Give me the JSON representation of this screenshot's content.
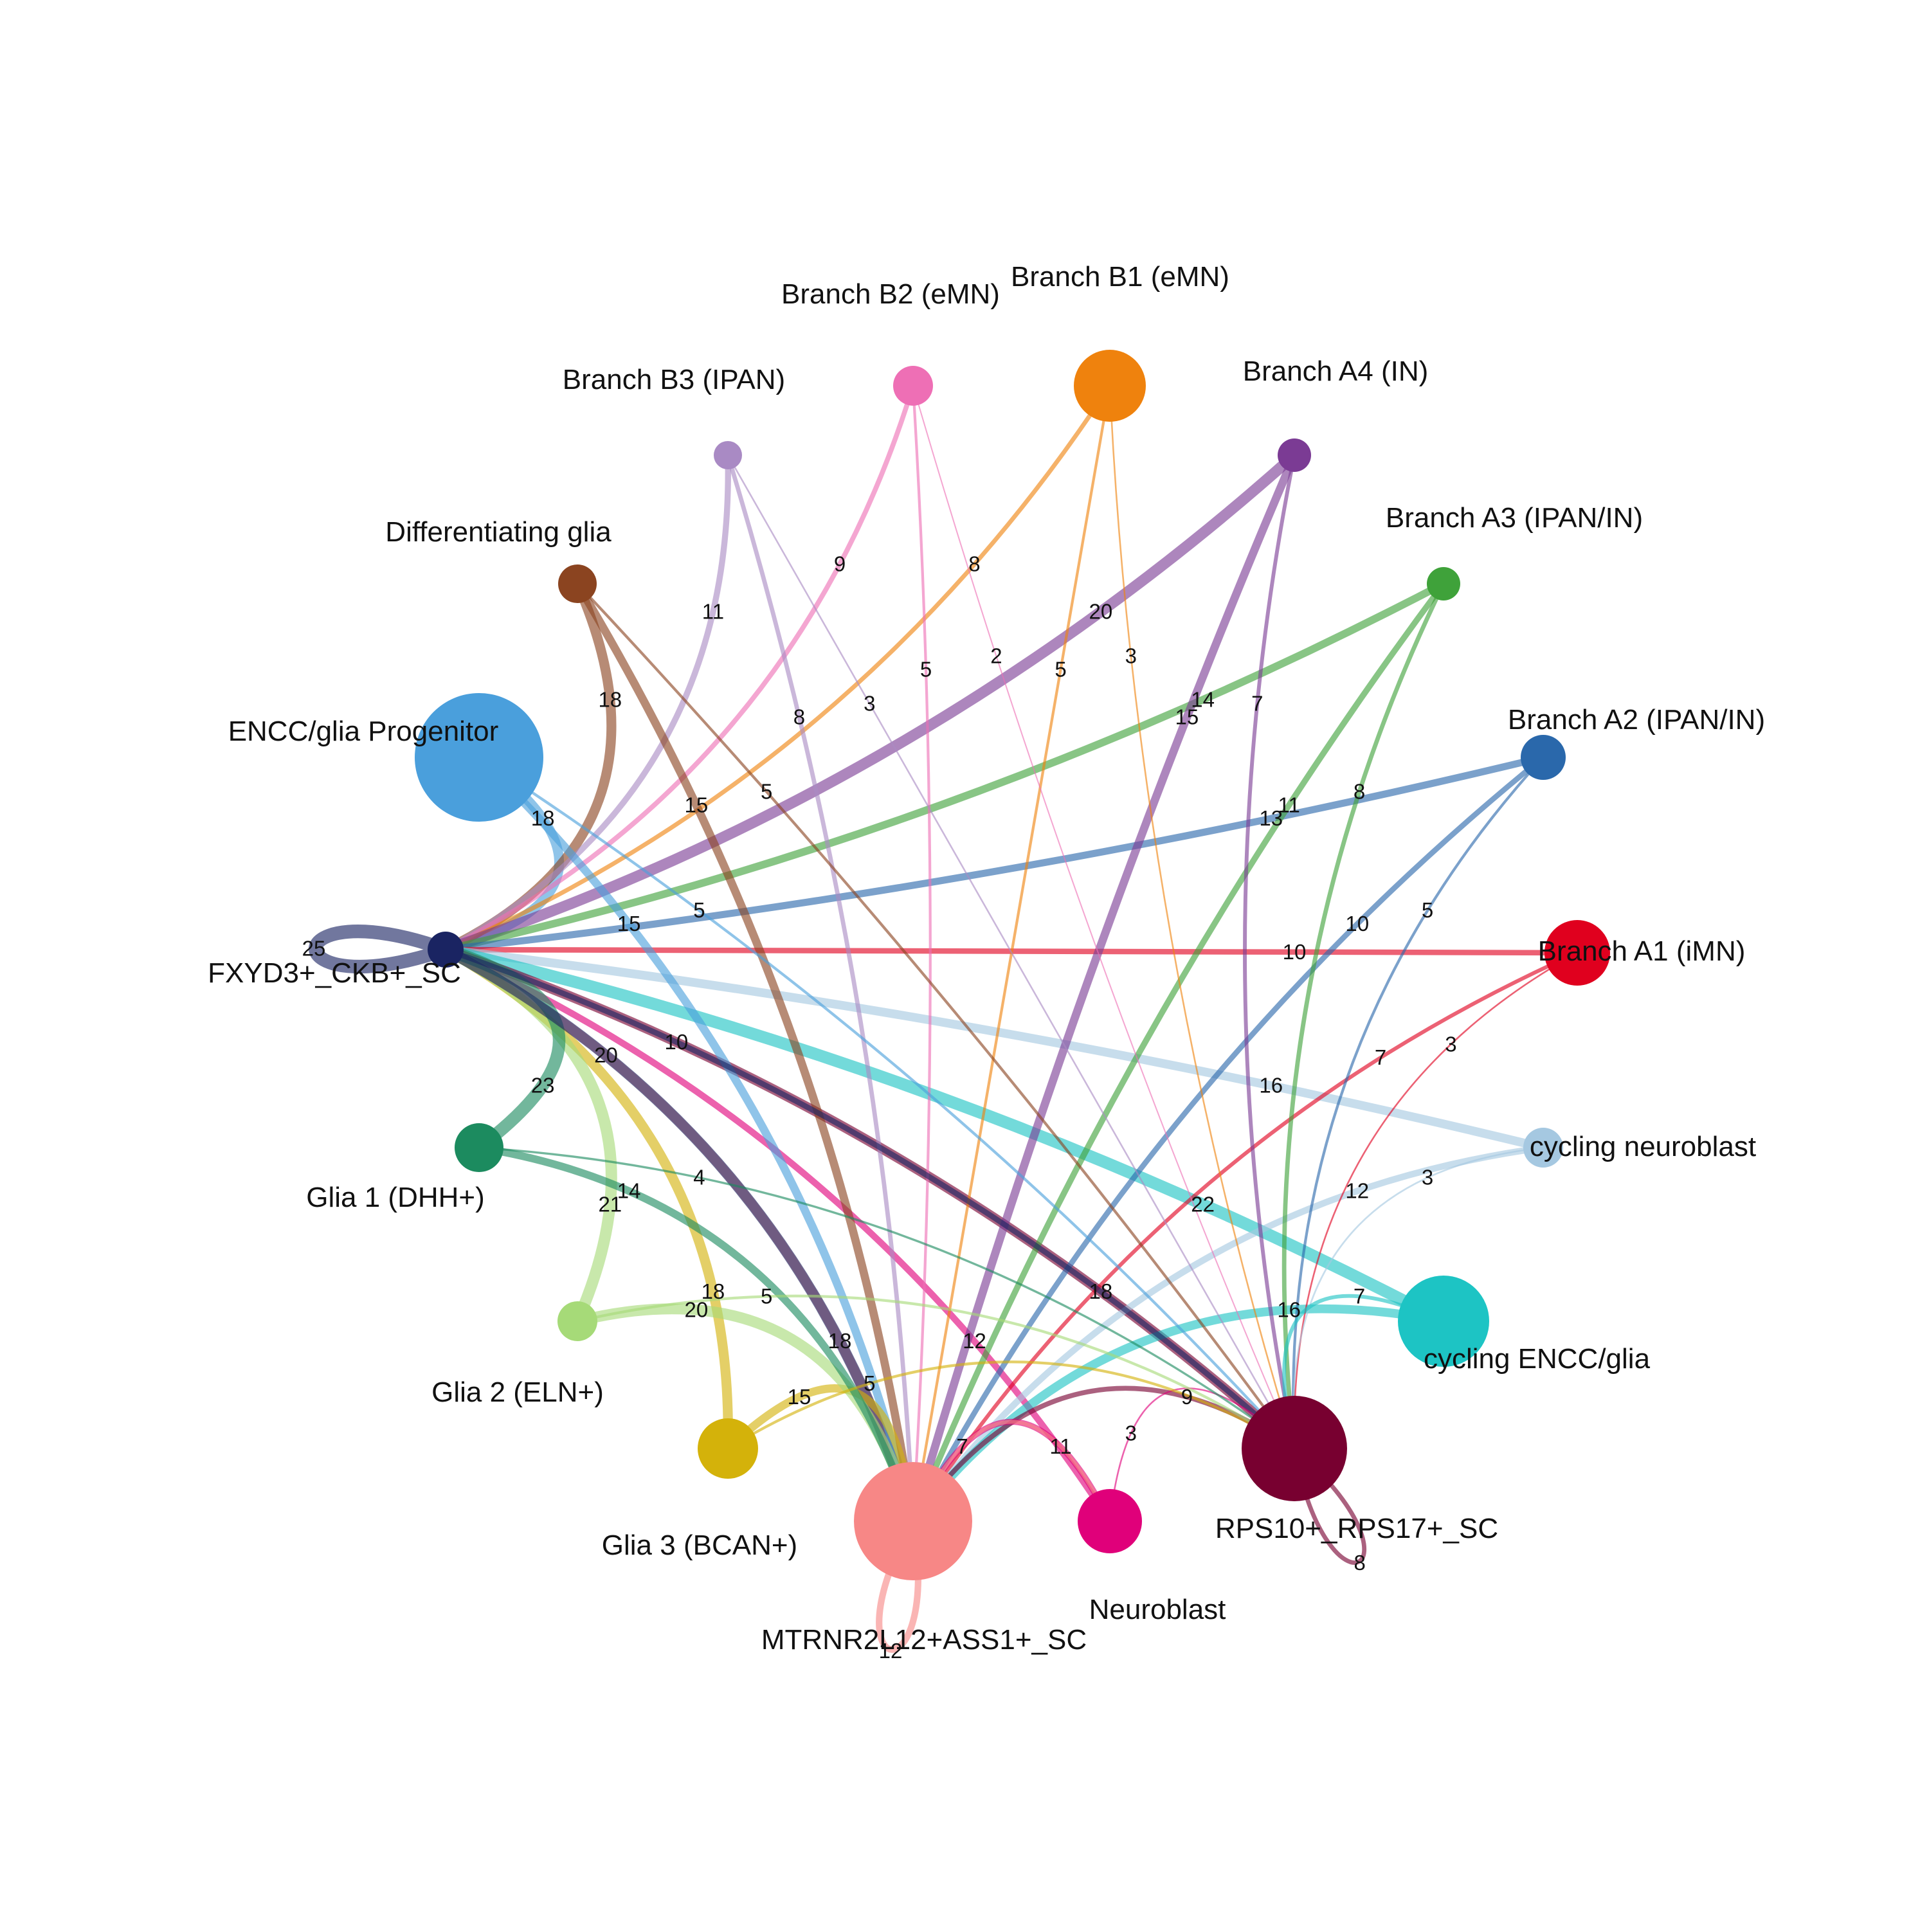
{
  "nodes": [
    {
      "id": "encc",
      "label": "ENCC/glia Progenitor",
      "color": "#4a9fdc"
    },
    {
      "id": "fxyd3",
      "label": "FXYD3+_CKB+_SC",
      "color": "#1a2462"
    },
    {
      "id": "diff",
      "label": "Differentiating glia",
      "color": "#8b4420"
    },
    {
      "id": "b3",
      "label": "Branch B3 (IPAN)",
      "color": "#a98ac4"
    },
    {
      "id": "b2",
      "label": "Branch B2 (eMN)",
      "color": "#ee6fb5"
    },
    {
      "id": "b1",
      "label": "Branch B1 (eMN)",
      "color": "#ef820d"
    },
    {
      "id": "a4",
      "label": "Branch A4 (IN)",
      "color": "#7b3b94"
    },
    {
      "id": "a3",
      "label": "Branch A3 (IPAN/IN)",
      "color": "#3fa23a"
    },
    {
      "id": "a2",
      "label": "Branch A2 (IPAN/IN)",
      "color": "#2a68ab"
    },
    {
      "id": "a1",
      "label": "Branch A1 (iMN)",
      "color": "#e0001e"
    },
    {
      "id": "cycnb",
      "label": "cycling neuroblast",
      "color": "#a5c8e1"
    },
    {
      "id": "cycencc",
      "label": "cycling ENCC/glia",
      "color": "#1dc4c4"
    },
    {
      "id": "rps",
      "label": "RPS10+_RPS17+_SC",
      "color": "#780030"
    },
    {
      "id": "nb",
      "label": "Neuroblast",
      "color": "#e0007a"
    },
    {
      "id": "mtr",
      "label": "MTRNR2L12+ASS1+_SC",
      "color": "#f78786"
    },
    {
      "id": "g3",
      "label": "Glia 3 (BCAN+)",
      "color": "#d4b20a"
    },
    {
      "id": "g2",
      "label": "Glia 2 (ELN+)",
      "color": "#a6da78"
    },
    {
      "id": "g1",
      "label": "Glia 1 (DHH+)",
      "color": "#1c8b5f"
    }
  ],
  "edges": [
    {
      "from": "fxyd3",
      "to": "fxyd3",
      "label": "25"
    },
    {
      "from": "encc",
      "to": "fxyd3",
      "label": "18"
    },
    {
      "from": "diff",
      "to": "fxyd3",
      "label": "18"
    },
    {
      "from": "b3",
      "to": "fxyd3",
      "label": "11"
    },
    {
      "from": "b2",
      "to": "fxyd3",
      "label": "9"
    },
    {
      "from": "b1",
      "to": "fxyd3",
      "label": "8"
    },
    {
      "from": "a4",
      "to": "fxyd3",
      "label": "20"
    },
    {
      "from": "a3",
      "to": "fxyd3",
      "label": "14"
    },
    {
      "from": "a2",
      "to": "fxyd3",
      "label": "13"
    },
    {
      "from": "a1",
      "to": "fxyd3",
      "label": "10"
    },
    {
      "from": "cycnb",
      "to": "fxyd3",
      "label": "16"
    },
    {
      "from": "cycencc",
      "to": "fxyd3",
      "label": "22"
    },
    {
      "from": "rps",
      "to": "fxyd3",
      "label": "18"
    },
    {
      "from": "nb",
      "to": "fxyd3",
      "label": "12"
    },
    {
      "from": "mtr",
      "to": "fxyd3",
      "label": "18"
    },
    {
      "from": "g3",
      "to": "fxyd3",
      "label": "18"
    },
    {
      "from": "g2",
      "to": "fxyd3",
      "label": "21"
    },
    {
      "from": "g1",
      "to": "fxyd3",
      "label": "23"
    },
    {
      "from": "fxyd3",
      "to": "mtr",
      "label": "20"
    },
    {
      "from": "encc",
      "to": "mtr",
      "label": "15"
    },
    {
      "from": "diff",
      "to": "mtr",
      "label": "15"
    },
    {
      "from": "b3",
      "to": "mtr",
      "label": "8"
    },
    {
      "from": "b2",
      "to": "mtr",
      "label": "5"
    },
    {
      "from": "b1",
      "to": "mtr",
      "label": "5"
    },
    {
      "from": "a4",
      "to": "mtr",
      "label": "15"
    },
    {
      "from": "a3",
      "to": "mtr",
      "label": "11"
    },
    {
      "from": "a2",
      "to": "mtr",
      "label": "10"
    },
    {
      "from": "a1",
      "to": "mtr",
      "label": "7"
    },
    {
      "from": "cycnb",
      "to": "mtr",
      "label": "12"
    },
    {
      "from": "cycencc",
      "to": "mtr",
      "label": "16"
    },
    {
      "from": "rps",
      "to": "mtr",
      "label": "9"
    },
    {
      "from": "nb",
      "to": "mtr",
      "label": "11"
    },
    {
      "from": "g3",
      "to": "mtr",
      "label": "15"
    },
    {
      "from": "g2",
      "to": "mtr",
      "label": "20"
    },
    {
      "from": "g1",
      "to": "mtr",
      "label": "14"
    },
    {
      "from": "mtr",
      "to": "mtr",
      "label": "12"
    },
    {
      "from": "fxyd3",
      "to": "rps",
      "label": "10"
    },
    {
      "from": "encc",
      "to": "rps",
      "label": "5"
    },
    {
      "from": "diff",
      "to": "rps",
      "label": "5"
    },
    {
      "from": "b3",
      "to": "rps",
      "label": "3"
    },
    {
      "from": "b2",
      "to": "rps",
      "label": "2"
    },
    {
      "from": "b1",
      "to": "rps",
      "label": "3"
    },
    {
      "from": "a4",
      "to": "rps",
      "label": "7"
    },
    {
      "from": "a3",
      "to": "rps",
      "label": "8"
    },
    {
      "from": "a2",
      "to": "rps",
      "label": "5"
    },
    {
      "from": "a1",
      "to": "rps",
      "label": "3"
    },
    {
      "from": "cycnb",
      "to": "rps",
      "label": "3"
    },
    {
      "from": "cycencc",
      "to": "rps",
      "label": "7"
    },
    {
      "from": "nb",
      "to": "rps",
      "label": "3"
    },
    {
      "from": "g3",
      "to": "rps",
      "label": "5"
    },
    {
      "from": "g2",
      "to": "rps",
      "label": "5"
    },
    {
      "from": "g1",
      "to": "rps",
      "label": "4"
    },
    {
      "from": "rps",
      "to": "rps",
      "label": "8"
    },
    {
      "from": "mtr",
      "to": "nb",
      "label": "7"
    }
  ]
}
